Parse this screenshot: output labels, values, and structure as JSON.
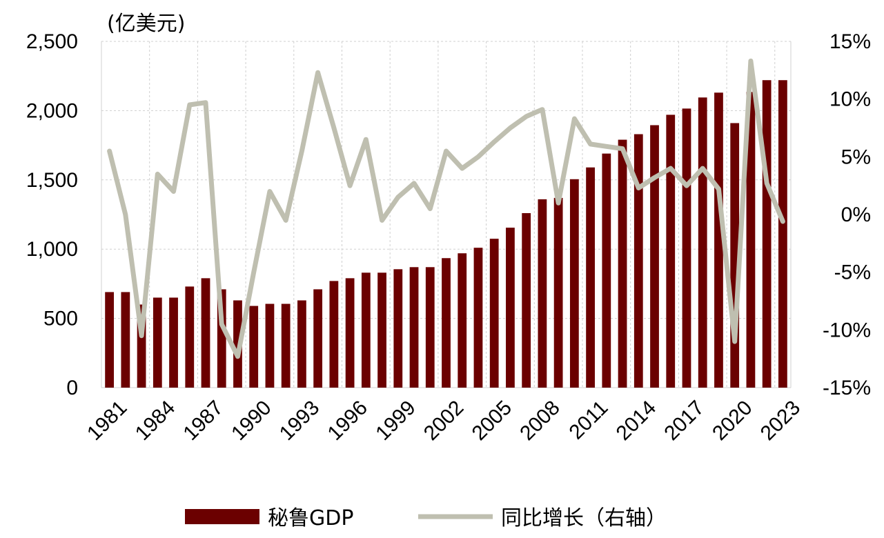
{
  "chart_data": {
    "type": "bar+line",
    "title": "",
    "unit_label": "(亿美元)",
    "x": [
      1981,
      1982,
      1983,
      1984,
      1985,
      1986,
      1987,
      1988,
      1989,
      1990,
      1991,
      1992,
      1993,
      1994,
      1995,
      1996,
      1997,
      1998,
      1999,
      2000,
      2001,
      2002,
      2003,
      2004,
      2005,
      2006,
      2007,
      2008,
      2009,
      2010,
      2011,
      2012,
      2013,
      2014,
      2015,
      2016,
      2017,
      2018,
      2019,
      2020,
      2021,
      2022,
      2023
    ],
    "x_tick_labels": [
      "1981",
      "1984",
      "1987",
      "1990",
      "1993",
      "1996",
      "1999",
      "2002",
      "2005",
      "2008",
      "2011",
      "2014",
      "2017",
      "2020",
      "2023"
    ],
    "series": [
      {
        "name": "秘鲁GDP",
        "type": "bar",
        "axis": "left",
        "color": "#6b0000",
        "values": [
          690,
          690,
          600,
          650,
          650,
          730,
          790,
          710,
          630,
          590,
          605,
          605,
          630,
          710,
          770,
          790,
          830,
          830,
          855,
          870,
          870,
          935,
          970,
          1010,
          1075,
          1155,
          1260,
          1360,
          1370,
          1505,
          1590,
          1690,
          1790,
          1830,
          1895,
          1970,
          2015,
          2095,
          2130,
          1910,
          2135,
          2220,
          2220
        ]
      },
      {
        "name": "同比增长（右轴）",
        "type": "line",
        "axis": "right",
        "color": "#bfbfb0",
        "values": [
          5.5,
          0,
          -10.5,
          3.5,
          2,
          9.5,
          9.7,
          -9.5,
          -12.3,
          -5,
          2,
          -0.5,
          5.5,
          12.3,
          7.5,
          2.5,
          6.5,
          -0.5,
          1.5,
          2.7,
          0.5,
          5.5,
          4,
          5,
          6.3,
          7.5,
          8.5,
          9.1,
          1,
          8.3,
          6.1,
          5.9,
          5.7,
          2.3,
          3.2,
          4,
          2.5,
          4,
          2.2,
          -11,
          13.3,
          2.7,
          -0.6
        ]
      }
    ],
    "y_left": {
      "min": 0,
      "max": 2500,
      "ticks": [
        0,
        500,
        1000,
        1500,
        2000,
        2500
      ],
      "tick_labels": [
        "0",
        "500",
        "1,000",
        "1,500",
        "2,000",
        "2,500"
      ]
    },
    "y_right": {
      "min": -15,
      "max": 15,
      "ticks": [
        -15,
        -10,
        -5,
        0,
        5,
        10,
        15
      ],
      "tick_labels": [
        "-15%",
        "-10%",
        "-5%",
        "0%",
        "5%",
        "10%",
        "15%"
      ]
    },
    "grid": true,
    "legend_position": "bottom"
  }
}
